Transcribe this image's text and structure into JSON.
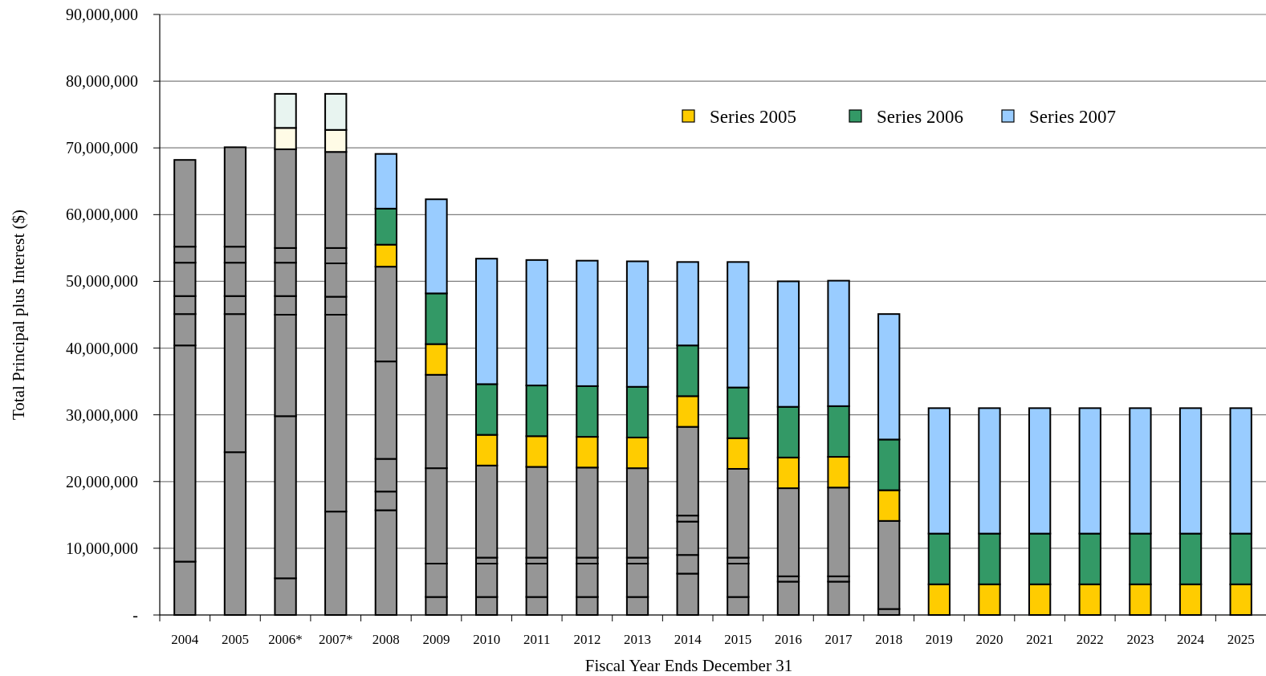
{
  "chart_data": {
    "type": "bar",
    "stacked": true,
    "xlabel": "Fiscal Year Ends December 31",
    "ylabel": "Total Principal plus Interest ($)",
    "categories": [
      "2004",
      "2005",
      "2006*",
      "2007*",
      "2008",
      "2009",
      "2010",
      "2011",
      "2012",
      "2013",
      "2014",
      "2015",
      "2016",
      "2017",
      "2018",
      "2019",
      "2020",
      "2021",
      "2022",
      "2023",
      "2024",
      "2025"
    ],
    "ylim": [
      0,
      90000000
    ],
    "yticks": [
      {
        "value": 0,
        "label": "-"
      },
      {
        "value": 10000000,
        "label": "10,000,000"
      },
      {
        "value": 20000000,
        "label": "20,000,000"
      },
      {
        "value": 30000000,
        "label": "30,000,000"
      },
      {
        "value": 40000000,
        "label": "40,000,000"
      },
      {
        "value": 50000000,
        "label": "50,000,000"
      },
      {
        "value": 60000000,
        "label": "60,000,000"
      },
      {
        "value": 70000000,
        "label": "70,000,000"
      },
      {
        "value": 80000000,
        "label": "80,000,000"
      },
      {
        "value": 90000000,
        "label": "90,000,000"
      }
    ],
    "grid": "y",
    "legend": "top right",
    "series": [
      {
        "color": "#969696",
        "values": [
          8000000,
          24400000,
          5500000,
          15500000,
          15700000,
          2700000,
          2700000,
          2700000,
          2700000,
          2700000,
          6200000,
          2700000,
          5000000,
          5000000,
          900000,
          null,
          null,
          null,
          null,
          null,
          null,
          null
        ]
      },
      {
        "color": "#969696",
        "values": [
          32400000,
          20700000,
          24300000,
          29500000,
          2800000,
          5000000,
          5000000,
          5000000,
          5000000,
          5000000,
          2800000,
          5000000,
          800000,
          800000,
          13200000,
          null,
          null,
          null,
          null,
          null,
          null,
          null
        ]
      },
      {
        "color": "#969696",
        "values": [
          4700000,
          2700000,
          15200000,
          2700000,
          4900000,
          14300000,
          900000,
          900000,
          900000,
          900000,
          5000000,
          900000,
          13200000,
          13300000,
          null,
          null,
          null,
          null,
          null,
          null,
          null,
          null
        ]
      },
      {
        "color": "#969696",
        "values": [
          2700000,
          5000000,
          2800000,
          5000000,
          14600000,
          14000000,
          13800000,
          13600000,
          13500000,
          13400000,
          900000,
          13300000,
          null,
          null,
          null,
          null,
          null,
          null,
          null,
          null,
          null,
          null
        ]
      },
      {
        "color": "#969696",
        "values": [
          5000000,
          2400000,
          5000000,
          2300000,
          14200000,
          null,
          null,
          null,
          null,
          null,
          13300000,
          null,
          null,
          null,
          null,
          null,
          null,
          null,
          null,
          null,
          null,
          null
        ]
      },
      {
        "color": "#969696",
        "values": [
          2400000,
          14900000,
          2200000,
          14400000,
          null,
          null,
          null,
          null,
          null,
          null,
          null,
          null,
          null,
          null,
          null,
          null,
          null,
          null,
          null,
          null,
          null,
          null
        ]
      },
      {
        "color": "#969696",
        "values": [
          13000000,
          null,
          14800000,
          null,
          null,
          null,
          null,
          null,
          null,
          null,
          null,
          null,
          null,
          null,
          null,
          null,
          null,
          null,
          null,
          null,
          null,
          null
        ]
      },
      {
        "color": "#fffbe6",
        "values": [
          null,
          null,
          3200000,
          3300000,
          null,
          null,
          null,
          null,
          null,
          null,
          null,
          null,
          null,
          null,
          null,
          null,
          null,
          null,
          null,
          null,
          null,
          null
        ]
      },
      {
        "color": "#e8f4f0",
        "values": [
          null,
          null,
          5100000,
          5400000,
          null,
          null,
          null,
          null,
          null,
          null,
          null,
          null,
          null,
          null,
          null,
          null,
          null,
          null,
          null,
          null,
          null,
          null
        ]
      },
      {
        "name": "Series 2005",
        "color": "#ffcc00",
        "values": [
          null,
          null,
          null,
          null,
          3300000,
          4600000,
          4600000,
          4600000,
          4600000,
          4600000,
          4600000,
          4600000,
          4600000,
          4600000,
          4600000,
          4600000,
          4600000,
          4600000,
          4600000,
          4600000,
          4600000,
          4600000
        ]
      },
      {
        "name": "Series 2006",
        "color": "#339966",
        "values": [
          null,
          null,
          null,
          null,
          5400000,
          7600000,
          7600000,
          7600000,
          7600000,
          7600000,
          7600000,
          7600000,
          7600000,
          7600000,
          7600000,
          7600000,
          7600000,
          7600000,
          7600000,
          7600000,
          7600000,
          7600000
        ]
      },
      {
        "name": "Series 2007",
        "color": "#99ccff",
        "values": [
          null,
          null,
          null,
          null,
          8200000,
          14100000,
          18800000,
          18800000,
          18800000,
          18800000,
          12500000,
          18800000,
          18800000,
          18800000,
          18800000,
          18800000,
          18800000,
          18800000,
          18800000,
          18800000,
          18800000,
          18800000
        ]
      }
    ]
  }
}
